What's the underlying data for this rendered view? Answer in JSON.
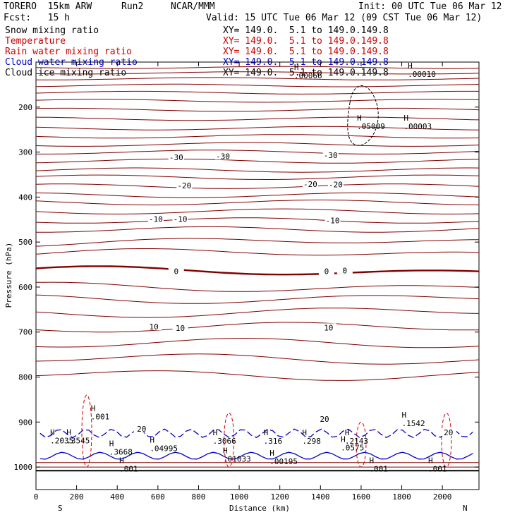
{
  "header": {
    "model": "TORERO  15km ARW",
    "run": "Run2",
    "org": "NCAR/MMM",
    "init": "Init: 00 UTC Tue 06 Mar 12",
    "fcst": "Fcst:   15 h",
    "valid": "Valid: 15 UTC Tue 06 Mar 12 (09 CST Tue 06 Mar 12)"
  },
  "legend": [
    {
      "name": "Snow mixing ratio",
      "xy": "XY= 149.0.  5.1 to 149.0.149.8",
      "color": "#000000"
    },
    {
      "name": "Temperature",
      "xy": "XY= 149.0.  5.1 to 149.0.149.8",
      "color": "#cc0000"
    },
    {
      "name": "Rain water mixing ratio",
      "xy": "XY= 149.0.  5.1 to 149.0.149.8",
      "color": "#cc0000"
    },
    {
      "name": "Cloud water mixing ratio",
      "xy": "XY= 149.0.  5.1 to 149.0.149.8",
      "color": "#0000cc"
    },
    {
      "name": "Cloud ice mixing ratio",
      "xy": "XY= 149.0.  5.1 to 149.0.149.8",
      "color": "#000000"
    }
  ],
  "chart_data": {
    "type": "contour",
    "xlabel": "Distance (km)",
    "ylabel": "Pressure (hPa)",
    "xlim": [
      0,
      2180
    ],
    "ylim": [
      1050,
      100
    ],
    "x_ticks": [
      0,
      200,
      400,
      600,
      800,
      1000,
      1200,
      1400,
      1600,
      1800,
      2000
    ],
    "y_ticks": [
      200,
      300,
      400,
      500,
      600,
      700,
      800,
      900,
      1000
    ],
    "end_labels": {
      "left": "S",
      "right": "N"
    },
    "temperature_isotherms_p": [
      112,
      124,
      137,
      152,
      168,
      186,
      206,
      226,
      247,
      265,
      283,
      300,
      320,
      340,
      356,
      376,
      396,
      412,
      432,
      452,
      472,
      500,
      525,
      565,
      600,
      625,
      656,
      690,
      726,
      760,
      795
    ],
    "temperature_labels": [
      {
        "t": "-30",
        "x": 690,
        "p": 312
      },
      {
        "t": "-30",
        "x": 920,
        "p": 309
      },
      {
        "t": "-30",
        "x": 1450,
        "p": 307
      },
      {
        "t": "-20",
        "x": 730,
        "p": 374
      },
      {
        "t": "-20",
        "x": 1350,
        "p": 371
      },
      {
        "t": "-20",
        "x": 1475,
        "p": 372
      },
      {
        "t": "-10",
        "x": 590,
        "p": 449
      },
      {
        "t": "-10",
        "x": 710,
        "p": 449
      },
      {
        "t": "-10",
        "x": 1460,
        "p": 452
      },
      {
        "t": "0",
        "x": 690,
        "p": 565
      },
      {
        "t": "0",
        "x": 1430,
        "p": 565
      },
      {
        "t": "0",
        "x": 1520,
        "p": 563
      },
      {
        "t": "10",
        "x": 580,
        "p": 688
      },
      {
        "t": "10",
        "x": 710,
        "p": 691
      },
      {
        "t": "10",
        "x": 1440,
        "p": 690
      },
      {
        "t": "20",
        "x": 520,
        "p": 915
      },
      {
        "t": "20",
        "x": 1420,
        "p": 893
      },
      {
        "t": "20",
        "x": 2030,
        "p": 923
      }
    ],
    "maxima_labels": [
      {
        "v": ".00066",
        "x": 1270,
        "p": 130,
        "color": "#000000"
      },
      {
        "v": ".00010",
        "x": 1830,
        "p": 127,
        "color": "#000000"
      },
      {
        "v": ".05009",
        "x": 1580,
        "p": 243,
        "color": "#000000"
      },
      {
        "v": ".00003",
        "x": 1810,
        "p": 243,
        "color": "#000000"
      },
      {
        "v": ".2035",
        "x": 70,
        "p": 941,
        "color": "#cc0000"
      },
      {
        "v": ".3545",
        "x": 150,
        "p": 941,
        "color": "#0000cc"
      },
      {
        "v": ".3668",
        "x": 360,
        "p": 966,
        "color": "#0000cc"
      },
      {
        "v": ".04995",
        "x": 560,
        "p": 958,
        "color": "#cc0000"
      },
      {
        "v": ".3066",
        "x": 870,
        "p": 942,
        "color": "#0000cc"
      },
      {
        "v": ".316",
        "x": 1120,
        "p": 942,
        "color": "#0000cc"
      },
      {
        "v": ".298",
        "x": 1310,
        "p": 942,
        "color": "#0000cc"
      },
      {
        "v": ".2143",
        "x": 1520,
        "p": 942,
        "color": "#0000cc"
      },
      {
        "v": ".0575",
        "x": 1500,
        "p": 957,
        "color": "#cc0000"
      },
      {
        "v": ".1542",
        "x": 1800,
        "p": 903,
        "color": "#0000cc"
      },
      {
        "v": ".01033",
        "x": 920,
        "p": 982,
        "color": "#cc0000"
      },
      {
        "v": ".00195",
        "x": 1150,
        "p": 987,
        "color": "#cc0000"
      },
      {
        "v": ".001",
        "x": 270,
        "p": 888,
        "color": "#cc0000"
      },
      {
        "v": ".001",
        "x": 410,
        "p": 1004,
        "color": "#cc0000"
      },
      {
        "v": ".001",
        "x": 1640,
        "p": 1004,
        "color": "#cc0000"
      },
      {
        "v": ".001",
        "x": 1930,
        "p": 1004,
        "color": "#cc0000"
      }
    ]
  }
}
